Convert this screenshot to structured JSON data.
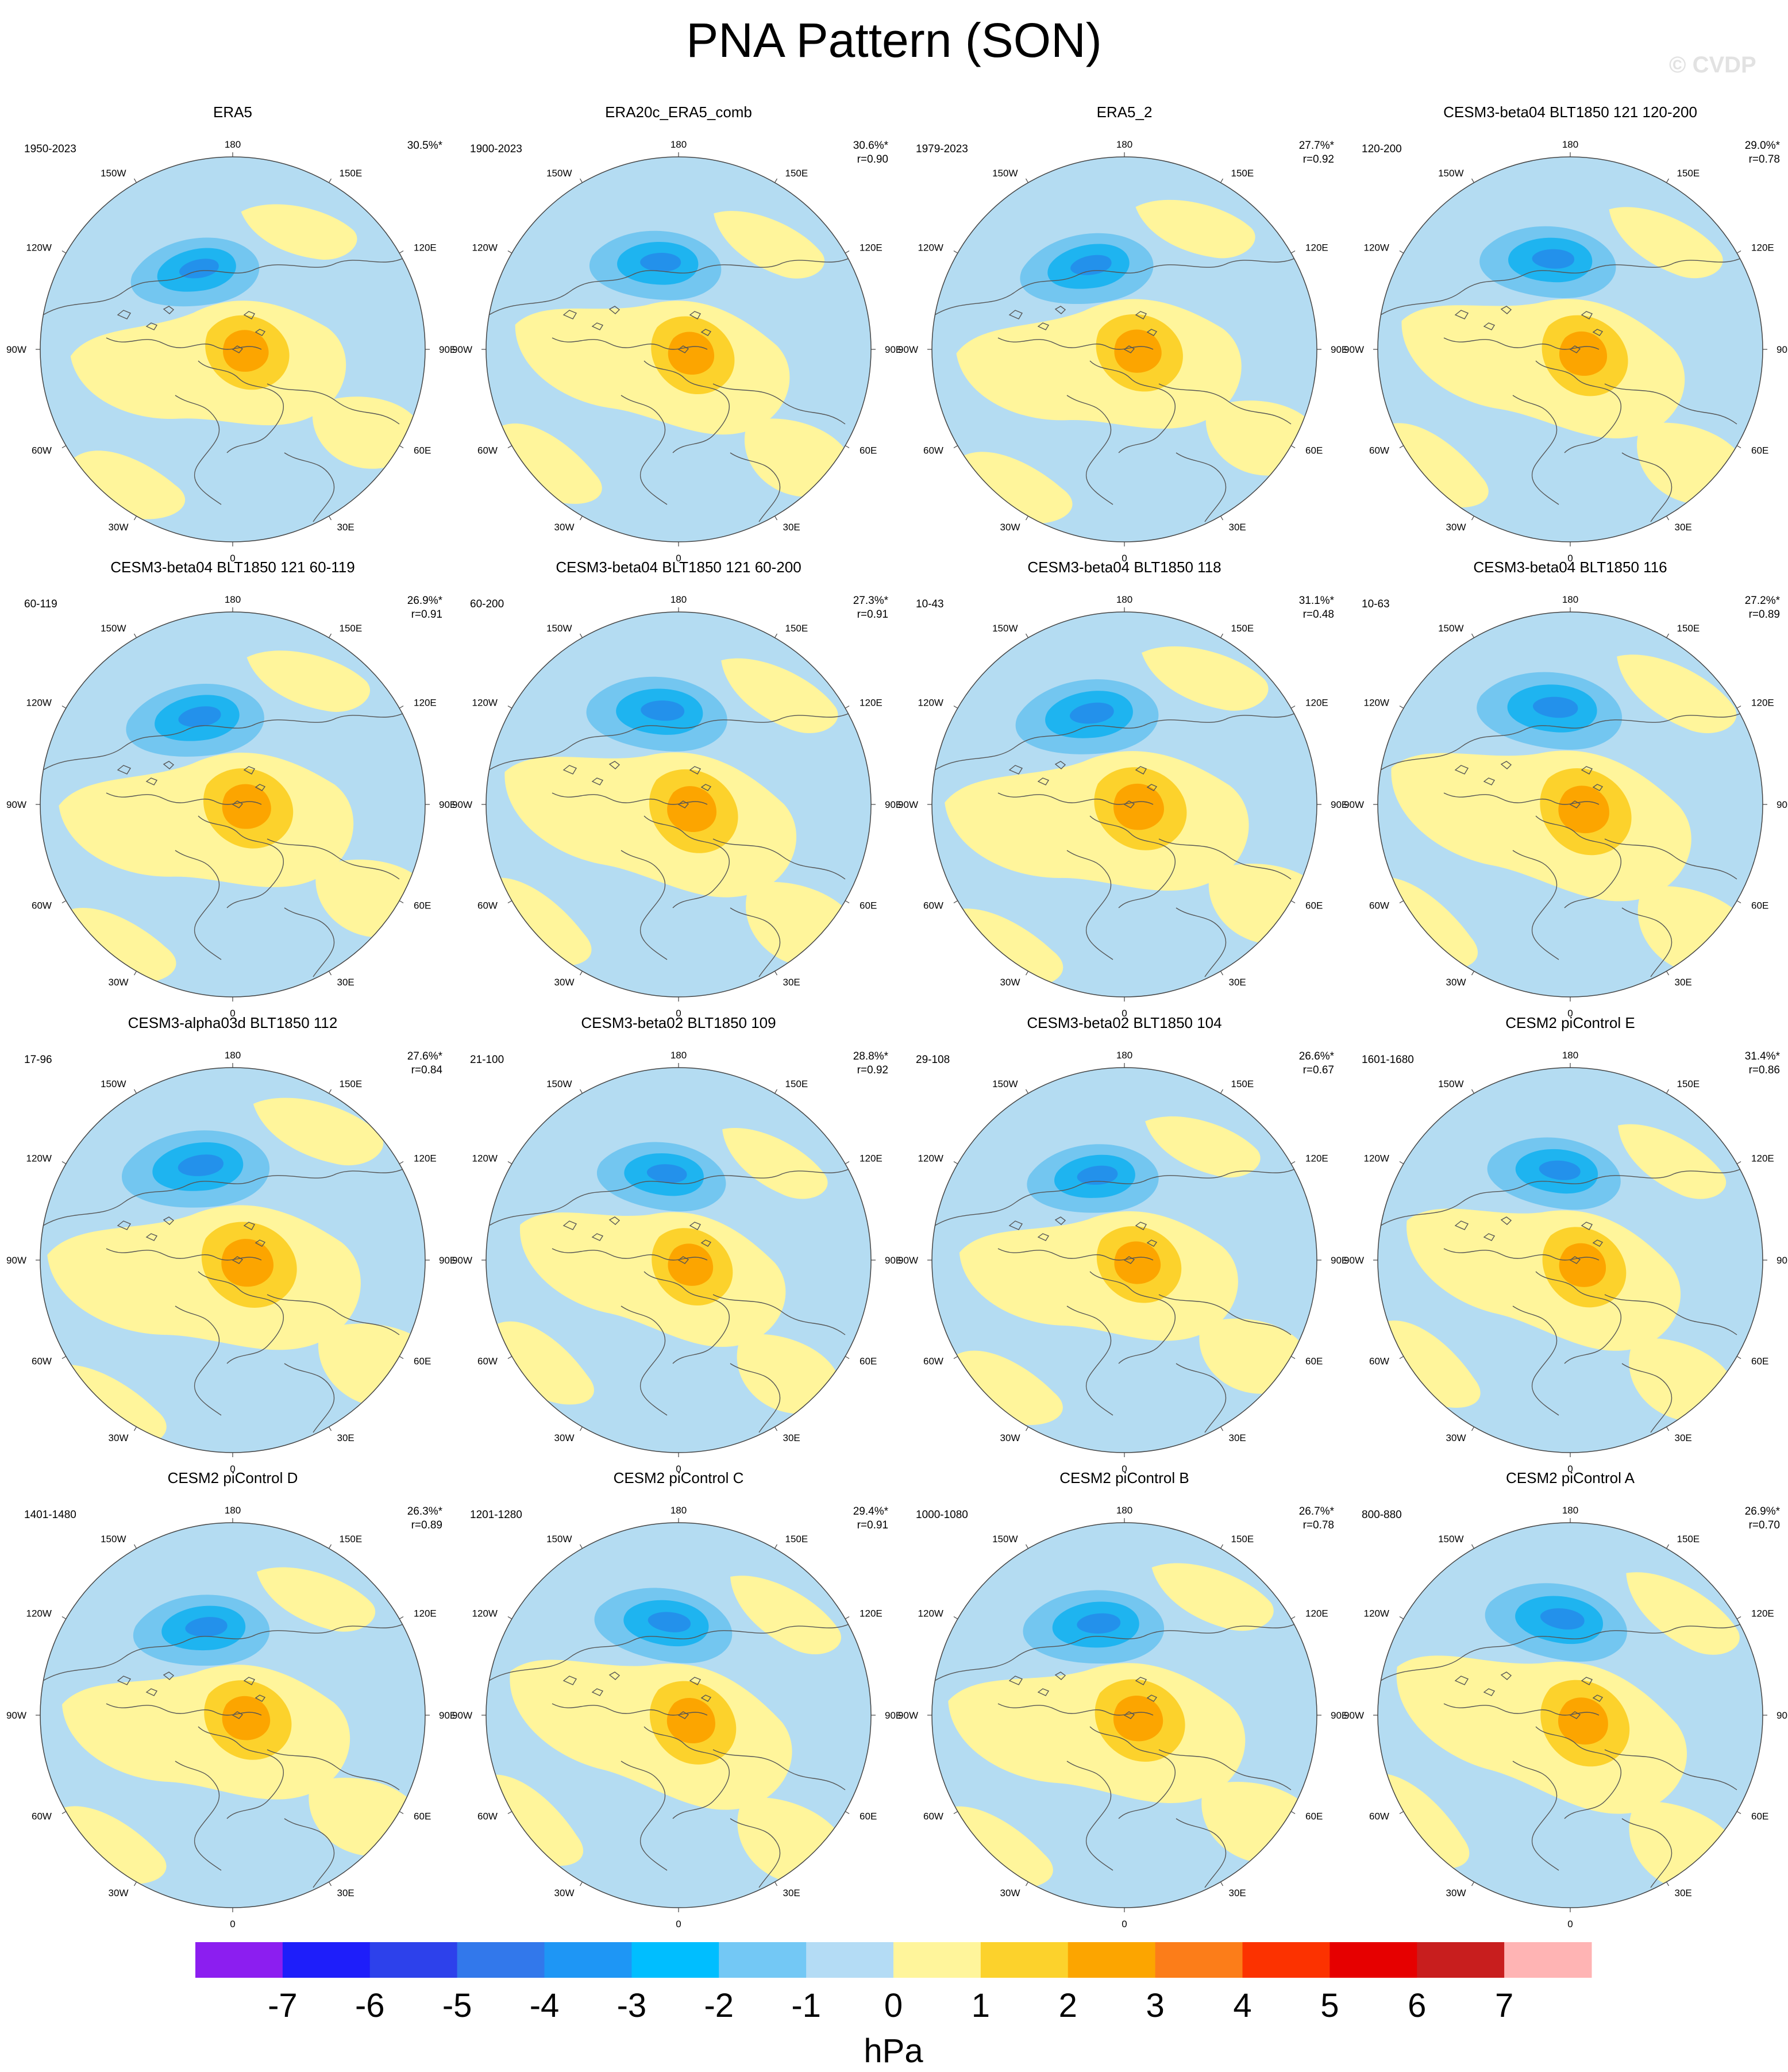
{
  "title": "PNA Pattern (SON)",
  "watermark": "© CVDP",
  "colors": {
    "ocean_neg1": "#b4dcf2",
    "neg2": "#73c6f0",
    "neg3": "#1eb4f0",
    "neg4": "#2391eb",
    "pos1": "#fff59b",
    "pos2": "#fcd22c",
    "pos3": "#fca500",
    "pos4": "#fc7d19",
    "coast": "#555555"
  },
  "longitude_labels": [
    "180",
    "150E",
    "120E",
    "90E",
    "60E",
    "30E",
    "0",
    "30W",
    "60W",
    "90W",
    "120W",
    "150W"
  ],
  "panels": [
    {
      "title": "ERA5",
      "years": "1950-2023",
      "pct": "30.5%*",
      "r": ""
    },
    {
      "title": "ERA20c_ERA5_comb",
      "years": "1900-2023",
      "pct": "30.6%*",
      "r": "r=0.90"
    },
    {
      "title": "ERA5_2",
      "years": "1979-2023",
      "pct": "27.7%*",
      "r": "r=0.92"
    },
    {
      "title": "CESM3-beta04 BLT1850 121 120-200",
      "years": "120-200",
      "pct": "29.0%*",
      "r": "r=0.78"
    },
    {
      "title": "CESM3-beta04 BLT1850 121 60-119",
      "years": "60-119",
      "pct": "26.9%*",
      "r": "r=0.91"
    },
    {
      "title": "CESM3-beta04 BLT1850 121 60-200",
      "years": "60-200",
      "pct": "27.3%*",
      "r": "r=0.91"
    },
    {
      "title": "CESM3-beta04 BLT1850 118",
      "years": "10-43",
      "pct": "31.1%*",
      "r": "r=0.48"
    },
    {
      "title": "CESM3-beta04 BLT1850 116",
      "years": "10-63",
      "pct": "27.2%*",
      "r": "r=0.89"
    },
    {
      "title": "CESM3-alpha03d BLT1850 112",
      "years": "17-96",
      "pct": "27.6%*",
      "r": "r=0.84"
    },
    {
      "title": "CESM3-beta02 BLT1850 109",
      "years": "21-100",
      "pct": "28.8%*",
      "r": "r=0.92"
    },
    {
      "title": "CESM3-beta02 BLT1850 104",
      "years": "29-108",
      "pct": "26.6%*",
      "r": "r=0.67"
    },
    {
      "title": "CESM2 piControl E",
      "years": "1601-1680",
      "pct": "31.4%*",
      "r": "r=0.86"
    },
    {
      "title": "CESM2 piControl D",
      "years": "1401-1480",
      "pct": "26.3%*",
      "r": "r=0.89"
    },
    {
      "title": "CESM2 piControl C",
      "years": "1201-1280",
      "pct": "29.4%*",
      "r": "r=0.91"
    },
    {
      "title": "CESM2 piControl B",
      "years": "1000-1080",
      "pct": "26.7%*",
      "r": "r=0.78"
    },
    {
      "title": "CESM2 piControl A",
      "years": "800-880",
      "pct": "26.9%*",
      "r": "r=0.70"
    }
  ],
  "colorbar": {
    "colors": [
      "#8c1ef0",
      "#1e1efa",
      "#2d41eb",
      "#3278eb",
      "#1e96f5",
      "#00beff",
      "#73c8f5",
      "#b4dcf5",
      "#fff59b",
      "#fcd22c",
      "#fca500",
      "#fc7d19",
      "#fc3200",
      "#e60000",
      "#c81e1e",
      "#ffb4b4"
    ],
    "tick_labels": [
      "-7",
      "-6",
      "-5",
      "-4",
      "-3",
      "-2",
      "-1",
      "0",
      "1",
      "2",
      "3",
      "4",
      "5",
      "6",
      "7"
    ],
    "units": "hPa"
  }
}
